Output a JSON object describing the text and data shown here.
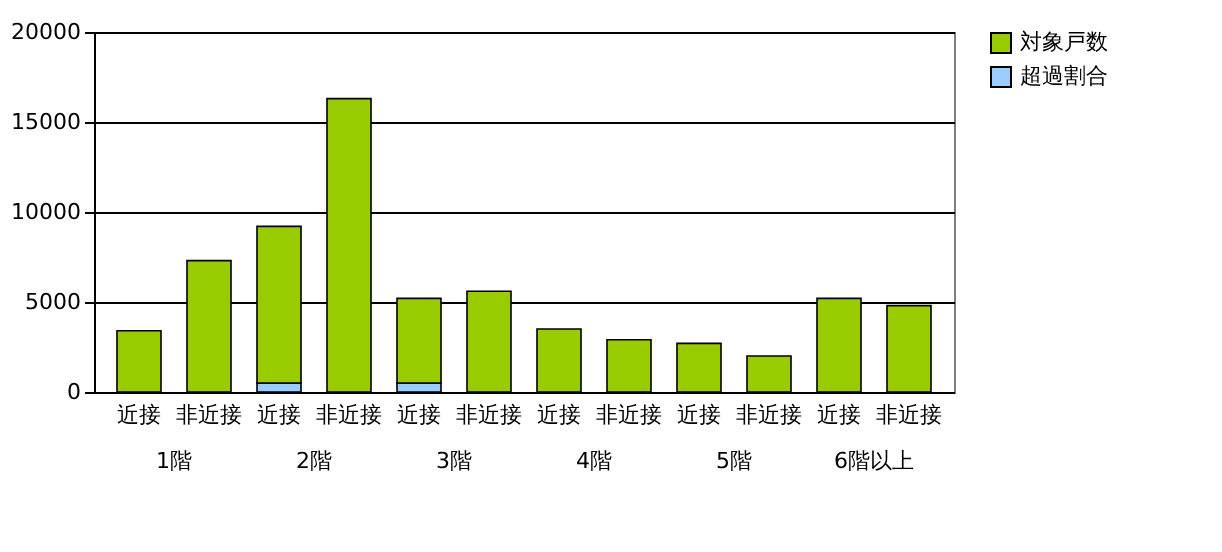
{
  "chart_data": {
    "type": "bar",
    "stacked": true,
    "categories": [
      "近接",
      "非近接",
      "近接",
      "非近接",
      "近接",
      "非近接",
      "近接",
      "非近接",
      "近接",
      "非近接",
      "近接",
      "非近接"
    ],
    "series": [
      {
        "name": "超過割合",
        "color": "#99ccff",
        "values": [
          null,
          0,
          500,
          null,
          500,
          0,
          null,
          0,
          0,
          0,
          0,
          null
        ]
      },
      {
        "name": "対象戸数",
        "color": "#99cc00",
        "values": [
          3400,
          7300,
          8700,
          16300,
          4700,
          5600,
          3500,
          2900,
          2700,
          2000,
          5200,
          4800
        ]
      }
    ],
    "annotations": [
      "1階",
      "2階",
      "3階",
      "4階",
      "5階",
      "6階以上"
    ],
    "ylim": [
      0,
      20000
    ],
    "yticks": [
      0,
      5000,
      10000,
      15000,
      20000
    ],
    "grid": "y",
    "legend": "right"
  }
}
